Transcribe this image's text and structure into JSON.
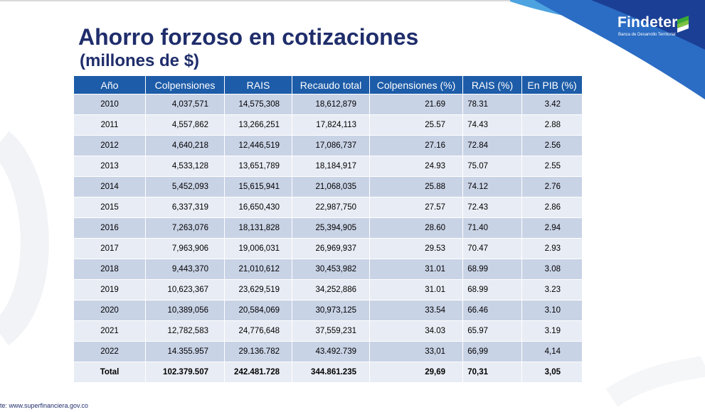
{
  "title": "Ahorro forzoso en cotizaciones",
  "subtitle": "(millones de $)",
  "logo": {
    "name": "Findeter",
    "tagline": "Banca de Desarrollo Territorial",
    "accent": "#1d5ca8",
    "mark_colors": [
      "#3aa935",
      "#7cc242",
      "#1d5ca8"
    ]
  },
  "table": {
    "headers": [
      "Año",
      "Colpensiones",
      "RAIS",
      "Recaudo total",
      "Colpensiones (%)",
      "RAIS (%)",
      "En PIB (%)"
    ],
    "rows": [
      [
        "2010",
        "4,037,571",
        "14,575,308",
        "18,612,879",
        "21.69",
        "78.31",
        "3.42"
      ],
      [
        "2011",
        "4,557,862",
        "13,266,251",
        "17,824,113",
        "25.57",
        "74.43",
        "2.88"
      ],
      [
        "2012",
        "4,640,218",
        "12,446,519",
        "17,086,737",
        "27.16",
        "72.84",
        "2.56"
      ],
      [
        "2013",
        "4,533,128",
        "13,651,789",
        "18,184,917",
        "24.93",
        "75.07",
        "2.55"
      ],
      [
        "2014",
        "5,452,093",
        "15,615,941",
        "21,068,035",
        "25.88",
        "74.12",
        "2.76"
      ],
      [
        "2015",
        "6,337,319",
        "16,650,430",
        "22,987,750",
        "27.57",
        "72.43",
        "2.86"
      ],
      [
        "2016",
        "7,263,076",
        "18,131,828",
        "25,394,905",
        "28.60",
        "71.40",
        "2.94"
      ],
      [
        "2017",
        "7,963,906",
        "19,006,031",
        "26,969,937",
        "29.53",
        "70.47",
        "2.93"
      ],
      [
        "2018",
        "9,443,370",
        "21,010,612",
        "30,453,982",
        "31.01",
        "68.99",
        "3.08"
      ],
      [
        "2019",
        "10,623,367",
        "23,629,519",
        "34,252,886",
        "31.01",
        "68.99",
        "3.23"
      ],
      [
        "2020",
        "10,389,056",
        "20,584,069",
        "30,973,125",
        "33.54",
        "66.46",
        "3.10"
      ],
      [
        "2021",
        "12,782,583",
        "24,776,648",
        "37,559,231",
        "34.03",
        "65.97",
        "3.19"
      ],
      [
        "2022",
        "14.355.957",
        "29.136.782",
        "43.492.739",
        "33,01",
        "66,99",
        "4,14"
      ]
    ],
    "total": [
      "Total",
      "102.379.507",
      "242.481.728",
      "344.861.235",
      "29,69",
      "70,31",
      "3,05"
    ]
  },
  "source": "te: www.superfinanciera.gov.co"
}
